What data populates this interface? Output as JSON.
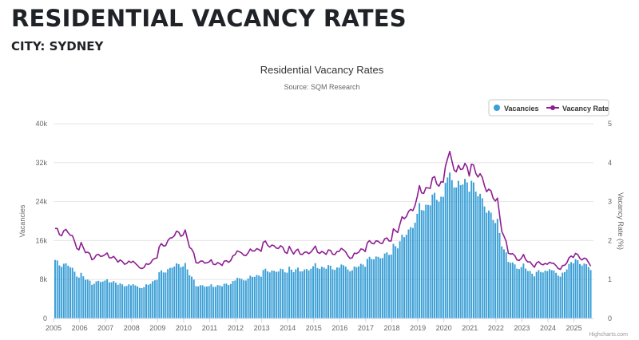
{
  "header": {
    "title": "RESIDENTIAL VACANCY RATES",
    "subtitle": "CITY: SYDNEY"
  },
  "credits": "Highcharts.com",
  "chart_data": {
    "type": "bar",
    "title": "Residential Vacancy Rates",
    "subtitle": "Source: SQM Research",
    "xlabel": "",
    "ylabel": "Vacancies",
    "ylabel_right": "Vacancy Rate (%)",
    "ylim": [
      0,
      40000
    ],
    "ylim_right": [
      0,
      5
    ],
    "y_ticks": [
      "0",
      "8k",
      "16k",
      "24k",
      "32k",
      "40k"
    ],
    "y_ticks_right": [
      "0",
      "1",
      "2",
      "3",
      "4",
      "5"
    ],
    "x_ticks": [
      "2005",
      "2006",
      "2007",
      "2008",
      "2009",
      "2010",
      "2011",
      "2012",
      "2013",
      "2014",
      "2015",
      "2016",
      "2017",
      "2018",
      "2019",
      "2020",
      "2021",
      "2022",
      "2023",
      "2024",
      "2025"
    ],
    "x_start_year": 2005,
    "grid": true,
    "legend_position": "top-right",
    "series": [
      {
        "name": "Vacancies",
        "type": "bar",
        "axis": "left",
        "color": "#3a9fd6",
        "anchors": [
          [
            "2005-01",
            10800
          ],
          [
            "2005-06",
            11400
          ],
          [
            "2005-12",
            8600
          ],
          [
            "2006-06",
            7400
          ],
          [
            "2006-12",
            7600
          ],
          [
            "2007-06",
            7200
          ],
          [
            "2007-12",
            6600
          ],
          [
            "2008-06",
            6400
          ],
          [
            "2008-12",
            8200
          ],
          [
            "2009-06",
            10600
          ],
          [
            "2009-12",
            11000
          ],
          [
            "2010-06",
            7000
          ],
          [
            "2010-12",
            6400
          ],
          [
            "2011-06",
            6800
          ],
          [
            "2011-12",
            7600
          ],
          [
            "2012-06",
            8300
          ],
          [
            "2012-12",
            9000
          ],
          [
            "2013-06",
            10000
          ],
          [
            "2013-12",
            9600
          ],
          [
            "2014-06",
            10000
          ],
          [
            "2014-12",
            10200
          ],
          [
            "2015-06",
            10600
          ],
          [
            "2015-12",
            10300
          ],
          [
            "2016-06",
            10200
          ],
          [
            "2016-12",
            11200
          ],
          [
            "2017-06",
            12800
          ],
          [
            "2017-12",
            13200
          ],
          [
            "2018-06",
            17000
          ],
          [
            "2018-12",
            20500
          ],
          [
            "2019-06",
            24500
          ],
          [
            "2019-12",
            25000
          ],
          [
            "2020-03",
            28500
          ],
          [
            "2020-06",
            28000
          ],
          [
            "2020-12",
            27200
          ],
          [
            "2021-06",
            24500
          ],
          [
            "2021-12",
            19500
          ],
          [
            "2022-06",
            11800
          ],
          [
            "2022-12",
            10200
          ],
          [
            "2023-06",
            9300
          ],
          [
            "2023-12",
            9800
          ],
          [
            "2024-06",
            8900
          ],
          [
            "2024-12",
            11600
          ],
          [
            "2025-06",
            10900
          ],
          [
            "2025-08",
            10400
          ]
        ]
      },
      {
        "name": "Vacancy Rate",
        "type": "line",
        "axis": "right",
        "color": "#8e1d93",
        "anchors": [
          [
            "2005-01",
            2.1
          ],
          [
            "2005-06",
            2.3
          ],
          [
            "2005-12",
            1.8
          ],
          [
            "2006-06",
            1.6
          ],
          [
            "2006-12",
            1.6
          ],
          [
            "2007-06",
            1.5
          ],
          [
            "2007-12",
            1.4
          ],
          [
            "2008-06",
            1.3
          ],
          [
            "2008-12",
            1.6
          ],
          [
            "2009-06",
            2.1
          ],
          [
            "2009-12",
            2.2
          ],
          [
            "2010-06",
            1.5
          ],
          [
            "2010-12",
            1.4
          ],
          [
            "2011-06",
            1.4
          ],
          [
            "2011-12",
            1.6
          ],
          [
            "2012-06",
            1.7
          ],
          [
            "2012-12",
            1.8
          ],
          [
            "2013-06",
            1.9
          ],
          [
            "2013-12",
            1.7
          ],
          [
            "2014-06",
            1.7
          ],
          [
            "2014-12",
            1.7
          ],
          [
            "2015-06",
            1.7
          ],
          [
            "2015-12",
            1.7
          ],
          [
            "2016-06",
            1.6
          ],
          [
            "2016-12",
            1.8
          ],
          [
            "2017-06",
            2.0
          ],
          [
            "2017-12",
            2.0
          ],
          [
            "2018-06",
            2.6
          ],
          [
            "2018-12",
            3.0
          ],
          [
            "2019-06",
            3.5
          ],
          [
            "2019-12",
            3.5
          ],
          [
            "2020-03",
            4.1
          ],
          [
            "2020-06",
            3.9
          ],
          [
            "2020-12",
            3.8
          ],
          [
            "2021-06",
            3.6
          ],
          [
            "2021-12",
            3.0
          ],
          [
            "2022-06",
            1.7
          ],
          [
            "2022-12",
            1.5
          ],
          [
            "2023-06",
            1.4
          ],
          [
            "2023-12",
            1.4
          ],
          [
            "2024-06",
            1.3
          ],
          [
            "2024-12",
            1.6
          ],
          [
            "2025-06",
            1.5
          ],
          [
            "2025-08",
            1.4
          ]
        ]
      }
    ]
  }
}
